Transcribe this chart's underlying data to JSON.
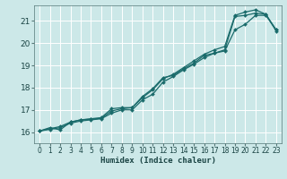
{
  "title": "",
  "xlabel": "Humidex (Indice chaleur)",
  "ylabel": "",
  "bg_color": "#cce8e8",
  "grid_color": "#ffffff",
  "line_color": "#1a6b6b",
  "xlim": [
    -0.5,
    23.5
  ],
  "ylim": [
    15.5,
    21.7
  ],
  "xticks": [
    0,
    1,
    2,
    3,
    4,
    5,
    6,
    7,
    8,
    9,
    10,
    11,
    12,
    13,
    14,
    15,
    16,
    17,
    18,
    19,
    20,
    21,
    22,
    23
  ],
  "yticks": [
    16,
    17,
    18,
    19,
    20,
    21
  ],
  "line1_x": [
    0,
    1,
    2,
    3,
    4,
    5,
    6,
    7,
    8,
    9,
    10,
    11,
    12,
    13,
    14,
    15,
    16,
    17,
    18,
    19,
    20,
    21,
    22,
    23
  ],
  "line1_y": [
    16.05,
    16.2,
    16.1,
    16.45,
    16.55,
    16.6,
    16.65,
    17.05,
    17.1,
    17.1,
    17.6,
    17.95,
    18.45,
    18.55,
    18.85,
    19.1,
    19.45,
    19.55,
    19.7,
    21.2,
    21.25,
    21.35,
    21.3,
    20.55
  ],
  "line2_x": [
    0,
    1,
    2,
    3,
    4,
    5,
    6,
    7,
    8,
    9,
    10,
    11,
    12,
    13,
    14,
    15,
    16,
    17,
    18,
    19,
    20,
    21,
    22,
    23
  ],
  "line2_y": [
    16.05,
    16.15,
    16.25,
    16.45,
    16.55,
    16.58,
    16.62,
    16.95,
    17.05,
    17.1,
    17.55,
    17.9,
    18.4,
    18.6,
    18.9,
    19.2,
    19.5,
    19.7,
    19.85,
    21.25,
    21.4,
    21.5,
    21.3,
    20.6
  ],
  "line3_x": [
    0,
    1,
    2,
    3,
    4,
    5,
    6,
    7,
    8,
    9,
    10,
    11,
    12,
    13,
    14,
    15,
    16,
    17,
    18,
    19,
    20,
    21,
    22,
    23
  ],
  "line3_y": [
    16.05,
    16.12,
    16.2,
    16.4,
    16.5,
    16.55,
    16.6,
    16.85,
    17.0,
    17.0,
    17.45,
    17.7,
    18.25,
    18.5,
    18.8,
    19.05,
    19.35,
    19.55,
    19.65,
    20.6,
    20.85,
    21.25,
    21.25,
    20.6
  ]
}
